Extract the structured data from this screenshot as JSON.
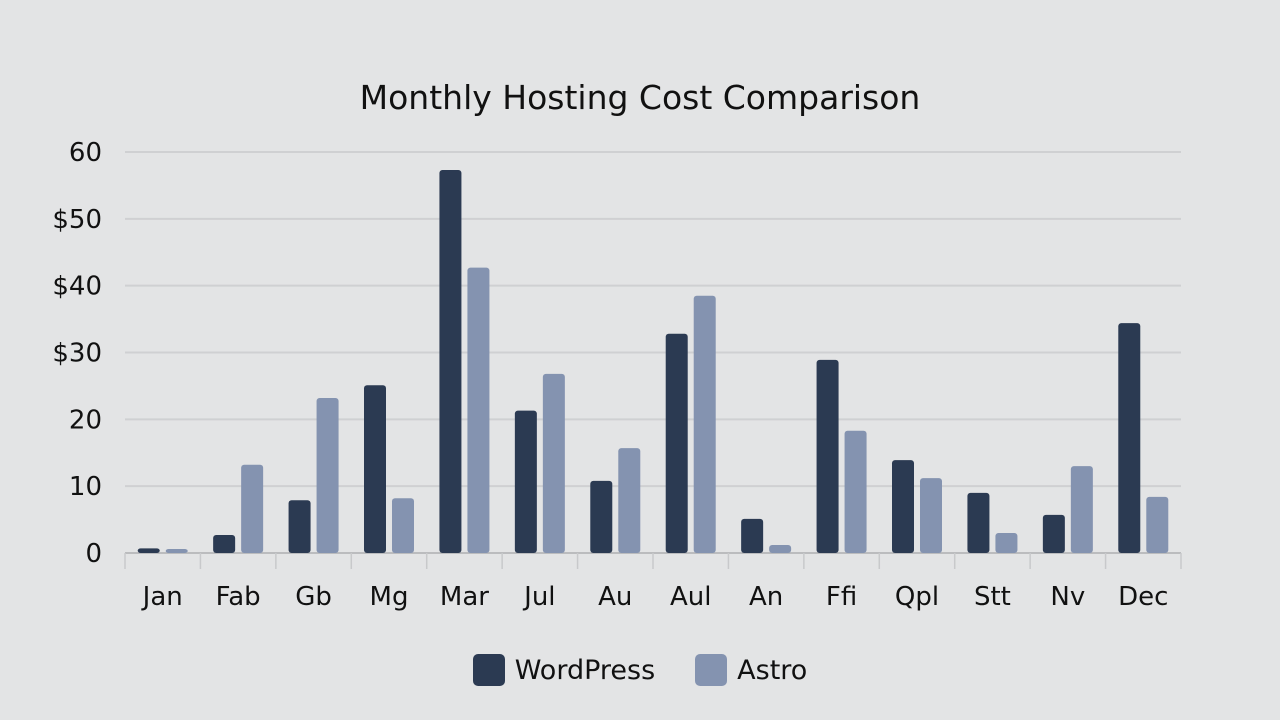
{
  "chart_data": {
    "type": "bar",
    "title": "Monthly Hosting Cost Comparison",
    "xlabel": "",
    "ylabel": "",
    "ylim": [
      0,
      60
    ],
    "yticks": [
      0,
      10,
      20,
      30,
      40,
      50,
      60
    ],
    "ytick_labels": [
      "0",
      "10",
      "20",
      "$30",
      "$40",
      "$50",
      "60"
    ],
    "grid": true,
    "legend_position": "bottom",
    "categories": [
      "Jan",
      "Fab",
      "Gb",
      "Mg",
      "Mar",
      "Jul",
      "Au",
      "Aul",
      "An",
      "Ffi",
      "Qpl",
      "Stt",
      "Nv",
      "Dec"
    ],
    "series": [
      {
        "name": "WordPress",
        "color": "#2b3a52",
        "values": [
          0.7,
          2.7,
          7.9,
          25.1,
          57.3,
          21.3,
          10.8,
          32.8,
          5.1,
          28.9,
          13.9,
          9.0,
          5.7,
          34.4
        ]
      },
      {
        "name": "Astro",
        "color": "#8493b0",
        "values": [
          0.6,
          13.2,
          23.2,
          8.2,
          42.7,
          26.8,
          15.7,
          38.5,
          1.2,
          18.3,
          11.2,
          3.0,
          13.0,
          8.4
        ]
      }
    ]
  }
}
